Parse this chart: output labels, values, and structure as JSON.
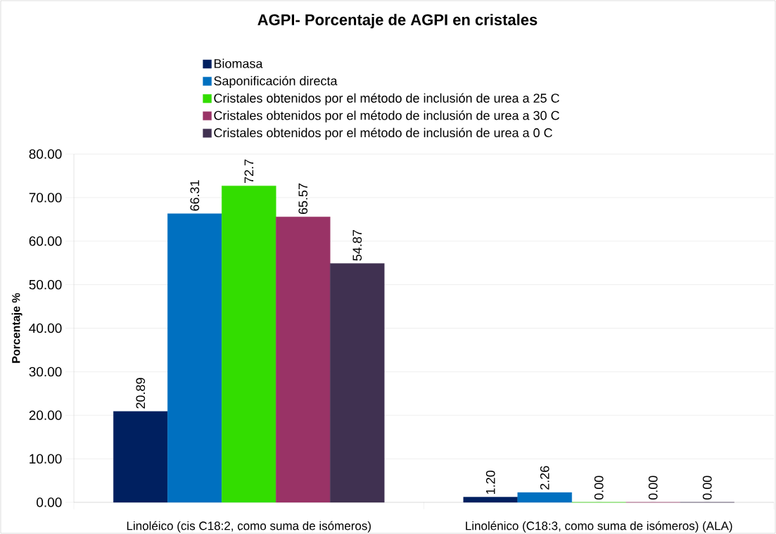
{
  "chart_data": {
    "type": "bar",
    "title": "AGPI-  Porcentaje de AGPI en cristales",
    "ylabel": "Porcentaje %",
    "categories": [
      "Linoléico (cis C18:2, como suma de isómeros)",
      "Linolénico (C18:3, como suma de isómeros) (ALA)"
    ],
    "series": [
      {
        "name": "Biomasa",
        "color": "#002060",
        "values": [
          20.89,
          1.2
        ],
        "value_labels": [
          "20.89",
          "1.20"
        ]
      },
      {
        "name": "Saponificación directa",
        "color": "#0070c0",
        "values": [
          66.31,
          2.26
        ],
        "value_labels": [
          "66.31",
          "2.26"
        ]
      },
      {
        "name": "Cristales obtenidos por el método de inclusión de urea a 25 C",
        "color": "#33dd00",
        "values": [
          72.7,
          0
        ],
        "value_labels": [
          "72.7",
          "0.00"
        ]
      },
      {
        "name": "Cristales obtenidos por el método de inclusión de urea a 30 C",
        "color": "#993366",
        "values": [
          65.57,
          0
        ],
        "value_labels": [
          "65.57",
          "0.00"
        ]
      },
      {
        "name": "Cristales obtenidos por el método de inclusión de urea a 0 C",
        "color": "#403151",
        "values": [
          54.87,
          0
        ],
        "value_labels": [
          "54.87",
          "0.00"
        ]
      }
    ],
    "ylim": [
      0,
      80
    ],
    "yticks": [
      {
        "value": 0,
        "label": "0.00"
      },
      {
        "value": 10,
        "label": "10.00"
      },
      {
        "value": 20,
        "label": "20.00"
      },
      {
        "value": 30,
        "label": "30.00"
      },
      {
        "value": 40,
        "label": "40.00"
      },
      {
        "value": 50,
        "label": "50.00"
      },
      {
        "value": 60,
        "label": "60.00"
      },
      {
        "value": 70,
        "label": "70.00"
      },
      {
        "value": 80,
        "label": "80.00"
      }
    ],
    "grid": "y",
    "legend": "top"
  }
}
